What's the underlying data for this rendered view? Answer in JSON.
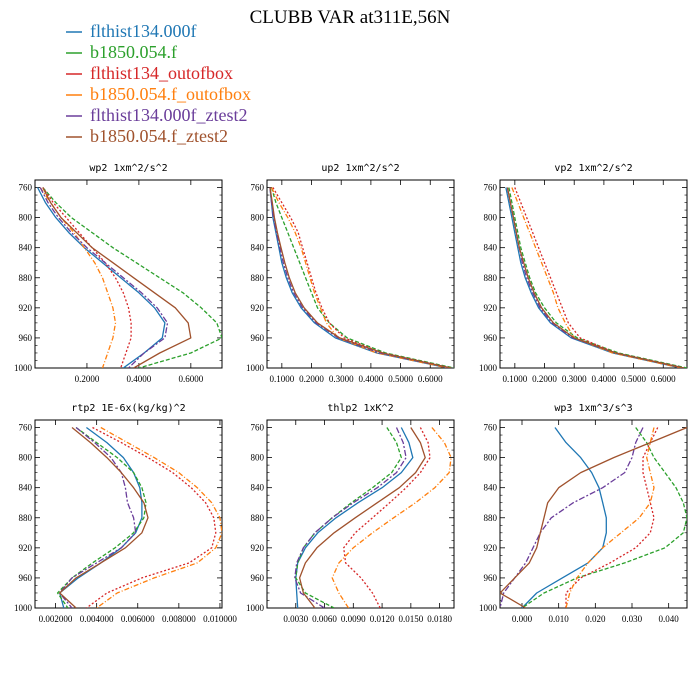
{
  "figure": {
    "title": "CLUBB VAR at311E,56N"
  },
  "legend": [
    {
      "name": "flthist134.000f",
      "color": "#1f77b4"
    },
    {
      "name": "b1850.054.f",
      "color": "#2ca02c"
    },
    {
      "name": "flthist134_outofbox",
      "color": "#d62728"
    },
    {
      "name": "b1850.054.f_outofbox",
      "color": "#ff7f0e"
    },
    {
      "name": "flthist134.000f_ztest2",
      "color": "#6a3d9a"
    },
    {
      "name": "b1850.054.f_ztest2",
      "color": "#a0522d"
    }
  ],
  "chart_data": [
    {
      "type": "line",
      "title": "wp2  1xm^2/s^2",
      "xlim": [
        0,
        0.72
      ],
      "ylim": [
        1000,
        750
      ],
      "y_ticks": [
        760,
        800,
        840,
        880,
        920,
        960,
        1000
      ],
      "x_ticks": [
        0.2,
        0.4,
        0.6
      ],
      "x_tick_labels": [
        "0.2000",
        "0.4000",
        "0.6000"
      ],
      "y": [
        760,
        780,
        800,
        820,
        840,
        860,
        880,
        900,
        920,
        940,
        960,
        980,
        1000
      ],
      "series": [
        {
          "name": "flthist134.000f",
          "x": [
            0.01,
            0.04,
            0.08,
            0.13,
            0.19,
            0.26,
            0.33,
            0.4,
            0.46,
            0.5,
            0.49,
            0.42,
            0.34
          ]
        },
        {
          "name": "b1850.054.f",
          "x": [
            0.03,
            0.08,
            0.14,
            0.22,
            0.3,
            0.39,
            0.48,
            0.57,
            0.64,
            0.7,
            0.72,
            0.6,
            0.4
          ]
        },
        {
          "name": "flthist134_outofbox",
          "x": [
            0.03,
            0.07,
            0.12,
            0.17,
            0.22,
            0.27,
            0.31,
            0.34,
            0.36,
            0.37,
            0.37,
            0.35,
            0.33
          ]
        },
        {
          "name": "b1850.054.f_outofbox",
          "x": [
            0.02,
            0.06,
            0.1,
            0.15,
            0.19,
            0.23,
            0.26,
            0.28,
            0.3,
            0.31,
            0.3,
            0.28,
            0.26
          ]
        },
        {
          "name": "flthist134.000f_ztest2",
          "x": [
            0.02,
            0.05,
            0.09,
            0.14,
            0.2,
            0.27,
            0.34,
            0.41,
            0.47,
            0.51,
            0.5,
            0.42,
            0.36
          ]
        },
        {
          "name": "b1850.054.f_ztest2",
          "x": [
            0.03,
            0.06,
            0.1,
            0.16,
            0.22,
            0.3,
            0.38,
            0.46,
            0.54,
            0.59,
            0.6,
            0.48,
            0.38
          ]
        }
      ]
    },
    {
      "type": "line",
      "title": "up2  1xm^2/s^2",
      "xlim": [
        0.05,
        0.68
      ],
      "ylim": [
        1000,
        750
      ],
      "y_ticks": [
        760,
        800,
        840,
        880,
        920,
        960,
        1000
      ],
      "x_ticks": [
        0.1,
        0.2,
        0.3,
        0.4,
        0.5,
        0.6
      ],
      "x_tick_labels": [
        "0.1000",
        "0.2000",
        "0.3000",
        "0.4000",
        "0.5000",
        "0.6000"
      ],
      "y": [
        760,
        780,
        800,
        820,
        840,
        860,
        880,
        900,
        920,
        940,
        960,
        980,
        1000
      ],
      "series": [
        {
          "name": "flthist134.000f",
          "x": [
            0.06,
            0.065,
            0.07,
            0.08,
            0.09,
            0.1,
            0.115,
            0.135,
            0.165,
            0.21,
            0.28,
            0.42,
            0.66
          ]
        },
        {
          "name": "b1850.054.f",
          "x": [
            0.065,
            0.08,
            0.1,
            0.12,
            0.14,
            0.16,
            0.18,
            0.2,
            0.22,
            0.26,
            0.32,
            0.45,
            0.68
          ]
        },
        {
          "name": "flthist134_outofbox",
          "x": [
            0.07,
            0.1,
            0.13,
            0.155,
            0.17,
            0.185,
            0.2,
            0.215,
            0.235,
            0.26,
            0.31,
            0.44,
            0.67
          ]
        },
        {
          "name": "b1850.054.f_outofbox",
          "x": [
            0.065,
            0.09,
            0.12,
            0.145,
            0.165,
            0.18,
            0.195,
            0.21,
            0.23,
            0.25,
            0.29,
            0.42,
            0.66
          ]
        },
        {
          "name": "flthist134.000f_ztest2",
          "x": [
            0.06,
            0.065,
            0.072,
            0.082,
            0.093,
            0.105,
            0.12,
            0.14,
            0.17,
            0.215,
            0.29,
            0.43,
            0.67
          ]
        },
        {
          "name": "b1850.054.f_ztest2",
          "x": [
            0.06,
            0.068,
            0.075,
            0.085,
            0.097,
            0.11,
            0.125,
            0.145,
            0.175,
            0.22,
            0.295,
            0.44,
            0.67
          ]
        }
      ]
    },
    {
      "type": "line",
      "title": "vp2  1xm^2/s^2",
      "xlim": [
        0.05,
        0.68
      ],
      "ylim": [
        1000,
        750
      ],
      "y_ticks": [
        760,
        800,
        840,
        880,
        920,
        960,
        1000
      ],
      "x_ticks": [
        0.1,
        0.2,
        0.3,
        0.4,
        0.5,
        0.6
      ],
      "x_tick_labels": [
        "0.1000",
        "0.2000",
        "0.3000",
        "0.4000",
        "0.5000",
        "0.6000"
      ],
      "y": [
        760,
        780,
        800,
        820,
        840,
        860,
        880,
        900,
        920,
        940,
        960,
        980,
        1000
      ],
      "series": [
        {
          "name": "flthist134.000f",
          "x": [
            0.07,
            0.08,
            0.09,
            0.1,
            0.11,
            0.12,
            0.135,
            0.155,
            0.18,
            0.22,
            0.29,
            0.43,
            0.66
          ]
        },
        {
          "name": "b1850.054.f",
          "x": [
            0.08,
            0.09,
            0.1,
            0.11,
            0.12,
            0.135,
            0.15,
            0.17,
            0.2,
            0.24,
            0.31,
            0.45,
            0.68
          ]
        },
        {
          "name": "flthist134_outofbox",
          "x": [
            0.1,
            0.12,
            0.14,
            0.16,
            0.18,
            0.2,
            0.22,
            0.24,
            0.26,
            0.28,
            0.32,
            0.44,
            0.67
          ]
        },
        {
          "name": "b1850.054.f_outofbox",
          "x": [
            0.09,
            0.11,
            0.13,
            0.15,
            0.17,
            0.19,
            0.21,
            0.23,
            0.245,
            0.27,
            0.3,
            0.43,
            0.66
          ]
        },
        {
          "name": "flthist134.000f_ztest2",
          "x": [
            0.075,
            0.085,
            0.095,
            0.105,
            0.115,
            0.125,
            0.14,
            0.16,
            0.185,
            0.225,
            0.295,
            0.44,
            0.67
          ]
        },
        {
          "name": "b1850.054.f_ztest2",
          "x": [
            0.075,
            0.085,
            0.095,
            0.105,
            0.115,
            0.13,
            0.145,
            0.165,
            0.19,
            0.23,
            0.3,
            0.44,
            0.67
          ]
        }
      ]
    },
    {
      "type": "line",
      "title": "rtp2  1E-6x(kg/kg)^2",
      "xlim": [
        0.001,
        0.0101
      ],
      "ylim": [
        1000,
        750
      ],
      "y_ticks": [
        760,
        800,
        840,
        880,
        920,
        960,
        1000
      ],
      "x_ticks": [
        0.002,
        0.004,
        0.006,
        0.008,
        0.01
      ],
      "x_tick_labels": [
        "0.002000",
        "0.004000",
        "0.006000",
        "0.008000",
        "0.010000"
      ],
      "y": [
        760,
        780,
        800,
        820,
        840,
        860,
        880,
        900,
        920,
        940,
        960,
        980,
        1000
      ],
      "series": [
        {
          "name": "flthist134.000f",
          "x": [
            0.0035,
            0.0045,
            0.0053,
            0.0058,
            0.0061,
            0.0062,
            0.0062,
            0.0059,
            0.0052,
            0.0042,
            0.0031,
            0.0022,
            0.0024
          ]
        },
        {
          "name": "b1850.054.f",
          "x": [
            0.003,
            0.004,
            0.005,
            0.0058,
            0.0062,
            0.0064,
            0.0063,
            0.0058,
            0.0049,
            0.0038,
            0.0028,
            0.0021,
            0.0026
          ]
        },
        {
          "name": "flthist134_outofbox",
          "x": [
            0.0038,
            0.0052,
            0.0065,
            0.0077,
            0.0086,
            0.0093,
            0.0097,
            0.0098,
            0.0096,
            0.0085,
            0.0062,
            0.0045,
            0.0035
          ]
        },
        {
          "name": "b1850.054.f_outofbox",
          "x": [
            0.0042,
            0.0055,
            0.0068,
            0.008,
            0.0089,
            0.0096,
            0.01,
            0.0101,
            0.0098,
            0.0089,
            0.0068,
            0.005,
            0.004
          ]
        },
        {
          "name": "flthist134.000f_ztest2",
          "x": [
            0.003,
            0.0039,
            0.0047,
            0.0052,
            0.0054,
            0.0055,
            0.0058,
            0.0059,
            0.0052,
            0.004,
            0.0028,
            0.0022,
            0.0028
          ]
        },
        {
          "name": "b1850.054.f_ztest2",
          "x": [
            0.0028,
            0.0037,
            0.0045,
            0.0052,
            0.0058,
            0.0063,
            0.0065,
            0.0062,
            0.0054,
            0.0042,
            0.003,
            0.0022,
            0.003
          ]
        }
      ]
    },
    {
      "type": "line",
      "title": "thlp2  1xK^2",
      "xlim": [
        0.0,
        0.0195
      ],
      "ylim": [
        1000,
        750
      ],
      "y_ticks": [
        760,
        800,
        840,
        880,
        920,
        960,
        1000
      ],
      "x_ticks": [
        0.003,
        0.006,
        0.009,
        0.012,
        0.015,
        0.018
      ],
      "x_tick_labels": [
        "0.0030",
        "0.0060",
        "0.0090",
        "0.0120",
        "0.0150",
        "0.0180"
      ],
      "y": [
        760,
        780,
        800,
        820,
        840,
        860,
        880,
        900,
        920,
        940,
        960,
        980,
        1000
      ],
      "series": [
        {
          "name": "flthist134.000f",
          "x": [
            0.014,
            0.0148,
            0.0152,
            0.014,
            0.012,
            0.0095,
            0.0072,
            0.0053,
            0.004,
            0.0032,
            0.003,
            0.0031,
            0.0032
          ]
        },
        {
          "name": "b1850.054.f",
          "x": [
            0.0125,
            0.0135,
            0.014,
            0.013,
            0.011,
            0.0088,
            0.0068,
            0.005,
            0.0038,
            0.0032,
            0.003,
            0.004,
            0.007
          ]
        },
        {
          "name": "flthist134_outofbox",
          "x": [
            0.016,
            0.0168,
            0.017,
            0.016,
            0.0145,
            0.0128,
            0.011,
            0.0092,
            0.008,
            0.0082,
            0.0098,
            0.011,
            0.0118
          ]
        },
        {
          "name": "b1850.054.f_outofbox",
          "x": [
            0.0172,
            0.0185,
            0.0192,
            0.019,
            0.0175,
            0.0155,
            0.0132,
            0.011,
            0.009,
            0.0075,
            0.0068,
            0.0075,
            0.0085
          ]
        },
        {
          "name": "flthist134.000f_ztest2",
          "x": [
            0.0135,
            0.0142,
            0.0145,
            0.0135,
            0.0115,
            0.009,
            0.0068,
            0.005,
            0.0038,
            0.0031,
            0.0029,
            0.0035,
            0.006
          ]
        },
        {
          "name": "b1850.054.f_ztest2",
          "x": [
            0.015,
            0.016,
            0.0165,
            0.0155,
            0.0138,
            0.0115,
            0.0092,
            0.007,
            0.0052,
            0.004,
            0.0034,
            0.0038,
            0.005
          ]
        }
      ]
    },
    {
      "type": "line",
      "title": "wp3  1xm^3/s^3",
      "xlim": [
        -0.006,
        0.045
      ],
      "ylim": [
        1000,
        750
      ],
      "y_ticks": [
        760,
        800,
        840,
        880,
        920,
        960,
        1000
      ],
      "x_ticks": [
        0.0,
        0.01,
        0.02,
        0.03,
        0.04
      ],
      "x_tick_labels": [
        "0.000",
        "0.010",
        "0.020",
        "0.030",
        "0.040"
      ],
      "y": [
        760,
        780,
        800,
        820,
        840,
        860,
        880,
        900,
        920,
        940,
        960,
        980,
        1000
      ],
      "series": [
        {
          "name": "flthist134.000f",
          "x": [
            0.009,
            0.012,
            0.016,
            0.019,
            0.021,
            0.022,
            0.023,
            0.023,
            0.022,
            0.018,
            0.011,
            0.004,
            0.0
          ]
        },
        {
          "name": "b1850.054.f",
          "x": [
            0.031,
            0.034,
            0.036,
            0.039,
            0.042,
            0.044,
            0.045,
            0.044,
            0.039,
            0.028,
            0.015,
            0.006,
            0.0
          ]
        },
        {
          "name": "flthist134_outofbox",
          "x": [
            0.037,
            0.035,
            0.033,
            0.033,
            0.034,
            0.035,
            0.036,
            0.035,
            0.031,
            0.024,
            0.016,
            0.012,
            0.012
          ]
        },
        {
          "name": "b1850.054.f_outofbox",
          "x": [
            0.036,
            0.035,
            0.034,
            0.035,
            0.036,
            0.035,
            0.032,
            0.027,
            0.022,
            0.018,
            0.015,
            0.013,
            0.012
          ]
        },
        {
          "name": "flthist134.000f_ztest2",
          "x": [
            0.033,
            0.031,
            0.03,
            0.028,
            0.022,
            0.014,
            0.008,
            0.005,
            0.003,
            0.001,
            -0.002,
            -0.005,
            -0.006
          ]
        },
        {
          "name": "b1850.054.f_ztest2",
          "x": [
            0.045,
            0.035,
            0.025,
            0.016,
            0.01,
            0.007,
            0.006,
            0.005,
            0.004,
            0.002,
            -0.002,
            -0.006,
            0.001
          ]
        }
      ]
    }
  ]
}
